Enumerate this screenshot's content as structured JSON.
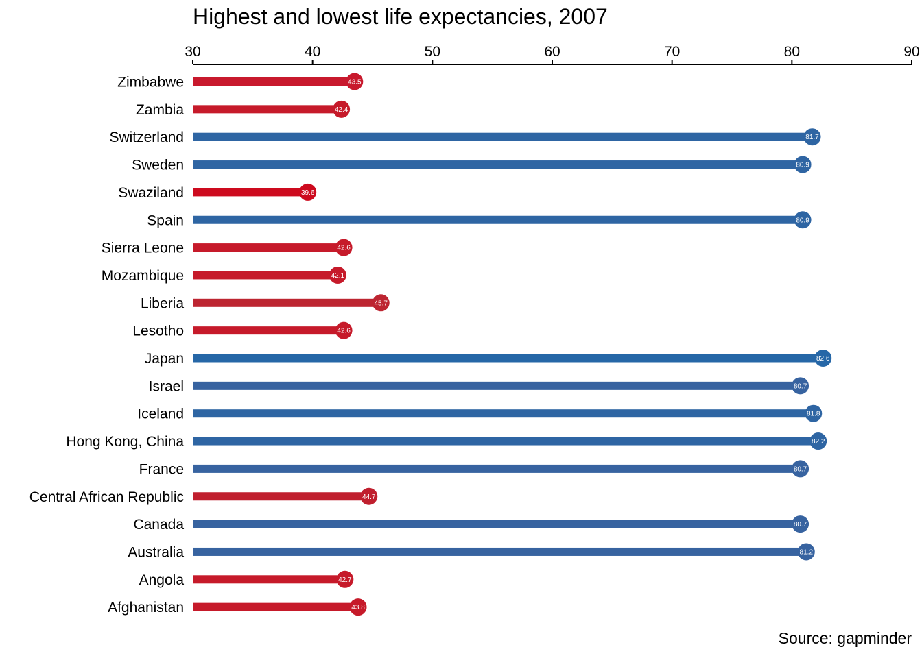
{
  "source_note": "Source: gapminder",
  "chart_data": {
    "type": "bar",
    "title": "Highest and lowest life expectancies, 2007",
    "xlabel": "",
    "ylabel": "",
    "xlim": [
      30,
      90
    ],
    "ticks": [
      30,
      40,
      50,
      60,
      70,
      80,
      90
    ],
    "axis_position": "top",
    "grid": false,
    "legend": false,
    "categories": [
      "Zimbabwe",
      "Zambia",
      "Switzerland",
      "Sweden",
      "Swaziland",
      "Spain",
      "Sierra Leone",
      "Mozambique",
      "Liberia",
      "Lesotho",
      "Japan",
      "Israel",
      "Iceland",
      "Hong Kong, China",
      "France",
      "Central African Republic",
      "Canada",
      "Australia",
      "Angola",
      "Afghanistan"
    ],
    "values": [
      43.5,
      42.4,
      81.7,
      80.9,
      39.6,
      80.9,
      42.6,
      42.1,
      45.7,
      42.6,
      82.6,
      80.7,
      81.8,
      82.2,
      80.7,
      44.7,
      80.7,
      81.2,
      42.7,
      43.8
    ],
    "value_labels": [
      "43.5",
      "42.4",
      "81.7",
      "80.9",
      "39.6",
      "80.9",
      "42.6",
      "42.1",
      "45.7",
      "42.6",
      "82.6",
      "80.7",
      "81.8",
      "82.2",
      "80.7",
      "44.7",
      "80.7",
      "81.2",
      "42.7",
      "43.8"
    ],
    "colors": [
      "#c8192d",
      "#c61a2a",
      "#2e65a3",
      "#2f65a3",
      "#cd0a1e",
      "#2e65a3",
      "#c61a2a",
      "#c61a2a",
      "#bd2531",
      "#c61a2a",
      "#2667a7",
      "#3763a0",
      "#2e65a3",
      "#2e65a3",
      "#3763a0",
      "#c01f2e",
      "#3763a0",
      "#3763a0",
      "#c61a2a",
      "#c61a2a"
    ]
  }
}
